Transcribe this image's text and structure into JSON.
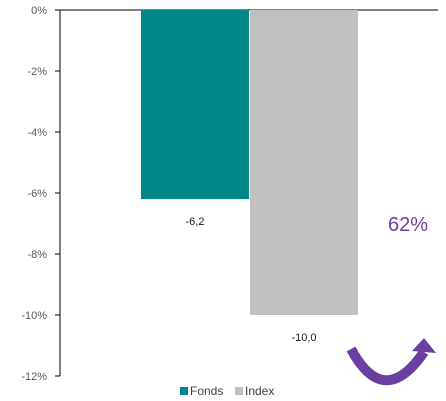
{
  "chart_data": {
    "type": "bar",
    "categories": [
      ""
    ],
    "series": [
      {
        "name": "Fonds",
        "values": [
          -6.2
        ],
        "label": "-6,2",
        "color": "#00878a"
      },
      {
        "name": "Index",
        "values": [
          -10.0
        ],
        "label": "-10,0",
        "color": "#c0c0c0"
      }
    ],
    "ylim": [
      -12,
      0
    ],
    "yticks": [
      0,
      -2,
      -4,
      -6,
      -8,
      -10,
      -12
    ],
    "ytick_labels": [
      "0%",
      "-2%",
      "-4%",
      "-6%",
      "-8%",
      "-10%",
      "-12%"
    ],
    "grid": false,
    "legend": "bottom-center",
    "annotation": {
      "text": "62%",
      "color": "#6b3fa0",
      "icon": "curved-arrow-icon"
    }
  }
}
